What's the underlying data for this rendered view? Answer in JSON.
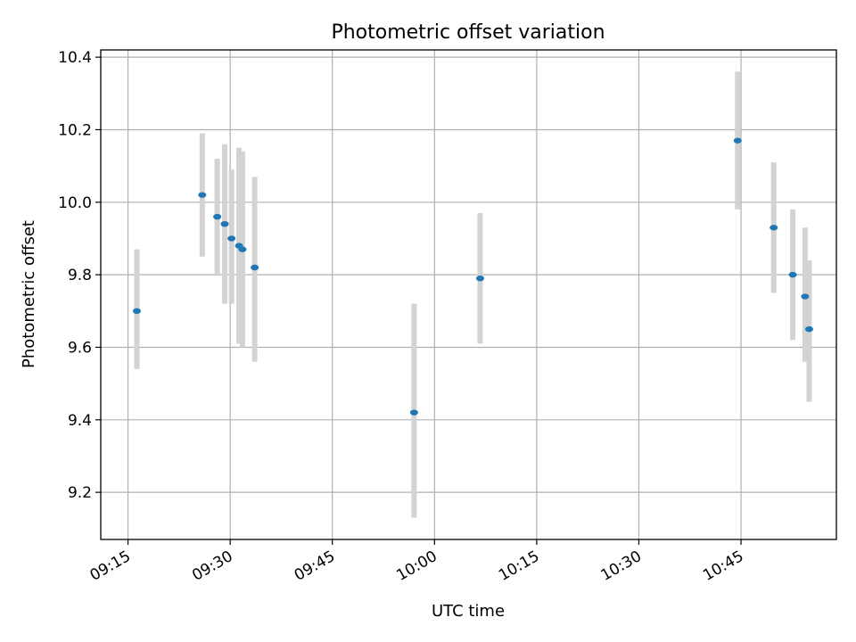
{
  "chart_data": {
    "type": "scatter",
    "title": "Photometric offset variation",
    "xlabel": "UTC time",
    "ylabel": "Photometric offset",
    "xlim": [
      "09:11",
      "10:59"
    ],
    "ylim": [
      9.07,
      10.42
    ],
    "x_ticks": [
      "09:15",
      "09:30",
      "09:45",
      "10:00",
      "10:15",
      "10:30",
      "10:45"
    ],
    "y_ticks": [
      9.2,
      9.4,
      9.6,
      9.8,
      10.0,
      10.2,
      10.4
    ],
    "grid": true,
    "marker_color": "#1f77b4",
    "errorbar_color": "#d3d3d3",
    "points": [
      {
        "time": "09:16:18",
        "value": 9.7,
        "low": 9.54,
        "high": 9.87
      },
      {
        "time": "09:25:54",
        "value": 10.02,
        "low": 9.85,
        "high": 10.19
      },
      {
        "time": "09:28:06",
        "value": 9.96,
        "low": 9.8,
        "high": 10.12
      },
      {
        "time": "09:29:12",
        "value": 9.94,
        "low": 9.72,
        "high": 10.16
      },
      {
        "time": "09:30:12",
        "value": 9.9,
        "low": 9.72,
        "high": 10.09
      },
      {
        "time": "09:31:18",
        "value": 9.88,
        "low": 9.61,
        "high": 10.15
      },
      {
        "time": "09:31:48",
        "value": 9.87,
        "low": 9.6,
        "high": 10.14
      },
      {
        "time": "09:33:36",
        "value": 9.82,
        "low": 9.56,
        "high": 10.07
      },
      {
        "time": "09:57:00",
        "value": 9.42,
        "low": 9.13,
        "high": 9.72
      },
      {
        "time": "10:06:42",
        "value": 9.79,
        "low": 9.61,
        "high": 9.97
      },
      {
        "time": "10:44:30",
        "value": 10.17,
        "low": 9.98,
        "high": 10.36
      },
      {
        "time": "10:49:48",
        "value": 9.93,
        "low": 9.75,
        "high": 10.11
      },
      {
        "time": "10:52:36",
        "value": 9.8,
        "low": 9.62,
        "high": 9.98
      },
      {
        "time": "10:54:24",
        "value": 9.74,
        "low": 9.56,
        "high": 9.93
      },
      {
        "time": "10:55:00",
        "value": 9.65,
        "low": 9.45,
        "high": 9.84
      }
    ]
  }
}
